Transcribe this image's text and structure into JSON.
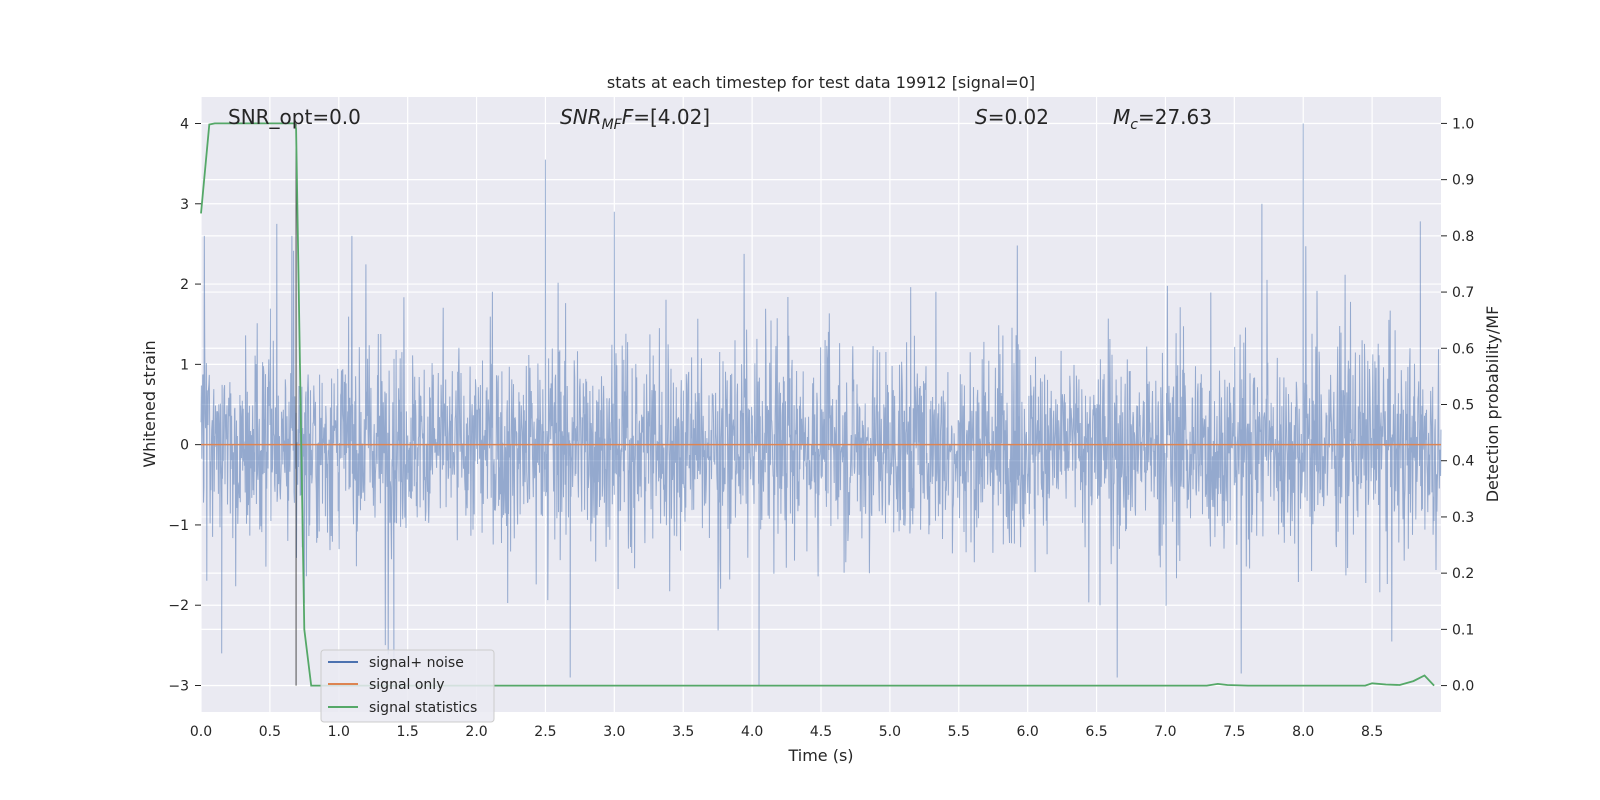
{
  "chart_data": {
    "type": "line",
    "title": "stats at each timestep for test data 19912 [signal=0]",
    "xlabel": "Time (s)",
    "ylabel_left": "Whitened strain",
    "ylabel_right": "Detection probability/MF",
    "xlim": [
      0.0,
      9.0
    ],
    "ylim_left": [
      -3.33,
      4.33
    ],
    "ylim_right": [
      -0.047,
      1.047
    ],
    "x_ticks": [
      "0.0",
      "0.5",
      "1.0",
      "1.5",
      "2.0",
      "2.5",
      "3.0",
      "3.5",
      "4.0",
      "4.5",
      "5.0",
      "5.5",
      "6.0",
      "6.5",
      "7.0",
      "7.5",
      "8.0",
      "8.5"
    ],
    "y_ticks_left": [
      "−3",
      "−2",
      "−1",
      "0",
      "1",
      "2",
      "3",
      "4"
    ],
    "y_ticks_right": [
      "0.0",
      "0.1",
      "0.2",
      "0.3",
      "0.4",
      "0.5",
      "0.6",
      "0.7",
      "0.8",
      "0.9",
      "1.0"
    ],
    "grid": true,
    "legend_position": "lower-left",
    "annotations": {
      "snr_opt": "SNR_opt=0.0",
      "snr_mf_label": "SNR",
      "snr_mf_sub": "MF",
      "snr_mf_value": "=[4.02]",
      "s_label": "S",
      "s_value": "=0.02",
      "mc_label": "M",
      "mc_sub": "c",
      "mc_value": "=27.63"
    },
    "vertical_marker_x": 0.69,
    "series": [
      {
        "name": "signal+ noise",
        "color": "#4c72b0",
        "axis": "left",
        "envelope_note": "dense whitened noise, mostly within about -1.6 to 1.5 with spikes to about 4.0 and -3.0",
        "spikes": [
          {
            "x": 0.55,
            "y": 2.75
          },
          {
            "x": 2.5,
            "y": 3.55
          },
          {
            "x": 3.0,
            "y": 2.9
          },
          {
            "x": 8.0,
            "y": 4.0
          },
          {
            "x": 7.7,
            "y": 3.0
          },
          {
            "x": 8.85,
            "y": 2.78
          },
          {
            "x": 4.05,
            "y": -3.0
          },
          {
            "x": 2.68,
            "y": -2.9
          },
          {
            "x": 6.65,
            "y": -2.9
          },
          {
            "x": 7.55,
            "y": -2.85
          },
          {
            "x": 0.15,
            "y": -2.6
          },
          {
            "x": 1.4,
            "y": -2.7
          }
        ]
      },
      {
        "name": "signal only",
        "color": "#dd8452",
        "axis": "left",
        "x": [
          0.0,
          9.0
        ],
        "y": [
          0.0,
          0.0
        ]
      },
      {
        "name": "signal statistics",
        "color": "#55a868",
        "axis": "right",
        "x": [
          0.0,
          0.06,
          0.1,
          0.2,
          0.4,
          0.6,
          0.68,
          0.69,
          0.75,
          0.8,
          1.0,
          2.0,
          3.0,
          4.0,
          5.0,
          6.0,
          7.0,
          7.3,
          7.38,
          7.45,
          7.6,
          8.0,
          8.3,
          8.45,
          8.5,
          8.6,
          8.7,
          8.8,
          8.88,
          8.95
        ],
        "y": [
          0.84,
          0.998,
          1.0,
          1.0,
          1.0,
          1.0,
          1.0,
          0.99,
          0.1,
          0.0,
          0.0,
          0.0,
          0.0,
          0.0,
          0.0,
          0.0,
          0.0,
          0.0,
          0.003,
          0.001,
          0.0,
          0.0,
          0.0,
          0.0,
          0.004,
          0.002,
          0.001,
          0.008,
          0.018,
          0.0
        ]
      }
    ]
  }
}
